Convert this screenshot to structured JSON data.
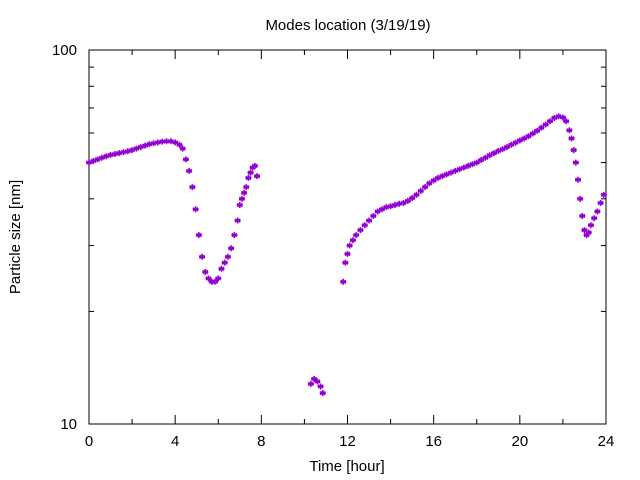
{
  "chart_data": {
    "type": "scatter",
    "title": "Modes location (3/19/19)",
    "xlabel": "Time [hour]",
    "ylabel": "Particle size [nm]",
    "xlim": [
      0,
      24
    ],
    "ylim": [
      10,
      100
    ],
    "yscale": "log",
    "xticks": [
      0,
      4,
      8,
      12,
      16,
      20,
      24
    ],
    "yticks": [
      10,
      100
    ],
    "tick_labels_x": [
      "0",
      "4",
      "8",
      "12",
      "16",
      "20",
      "24"
    ],
    "tick_labels_y": [
      "10",
      "100"
    ],
    "grid": false,
    "legend": "none",
    "marker": "asterisk",
    "color": "#9400d3",
    "points": [
      [
        0.0,
        50.0
      ],
      [
        0.2,
        50.5
      ],
      [
        0.4,
        51.0
      ],
      [
        0.6,
        51.5
      ],
      [
        0.8,
        52.0
      ],
      [
        1.0,
        52.4
      ],
      [
        1.2,
        52.7
      ],
      [
        1.4,
        53.0
      ],
      [
        1.6,
        53.3
      ],
      [
        1.8,
        53.6
      ],
      [
        2.0,
        54.0
      ],
      [
        2.2,
        54.5
      ],
      [
        2.4,
        55.0
      ],
      [
        2.6,
        55.5
      ],
      [
        2.8,
        56.0
      ],
      [
        3.0,
        56.3
      ],
      [
        3.2,
        56.6
      ],
      [
        3.4,
        56.9
      ],
      [
        3.6,
        57.0
      ],
      [
        3.8,
        57.0
      ],
      [
        4.0,
        56.6
      ],
      [
        4.2,
        55.8
      ],
      [
        4.35,
        54.5
      ],
      [
        4.5,
        51.0
      ],
      [
        4.65,
        47.5
      ],
      [
        4.8,
        43.0
      ],
      [
        4.95,
        37.5
      ],
      [
        5.1,
        32.0
      ],
      [
        5.25,
        28.0
      ],
      [
        5.4,
        25.5
      ],
      [
        5.55,
        24.5
      ],
      [
        5.7,
        24.0
      ],
      [
        5.85,
        24.0
      ],
      [
        6.0,
        24.5
      ],
      [
        6.15,
        26.0
      ],
      [
        6.3,
        27.0
      ],
      [
        6.45,
        28.0
      ],
      [
        6.6,
        29.5
      ],
      [
        6.75,
        32.0
      ],
      [
        6.9,
        35.0
      ],
      [
        7.0,
        38.5
      ],
      [
        7.1,
        40.0
      ],
      [
        7.2,
        41.5
      ],
      [
        7.3,
        43.0
      ],
      [
        7.4,
        45.5
      ],
      [
        7.5,
        47.0
      ],
      [
        7.6,
        48.5
      ],
      [
        7.7,
        49.0
      ],
      [
        7.8,
        46.0
      ],
      [
        10.3,
        12.8
      ],
      [
        10.45,
        13.2
      ],
      [
        10.6,
        13.0
      ],
      [
        10.75,
        12.6
      ],
      [
        10.85,
        12.1
      ],
      [
        11.8,
        24.0
      ],
      [
        11.9,
        27.0
      ],
      [
        12.0,
        28.5
      ],
      [
        12.1,
        30.0
      ],
      [
        12.25,
        31.0
      ],
      [
        12.4,
        32.0
      ],
      [
        12.6,
        33.0
      ],
      [
        12.8,
        34.0
      ],
      [
        13.0,
        35.0
      ],
      [
        13.2,
        36.0
      ],
      [
        13.4,
        37.0
      ],
      [
        13.6,
        37.5
      ],
      [
        13.8,
        38.0
      ],
      [
        14.0,
        38.2
      ],
      [
        14.2,
        38.5
      ],
      [
        14.4,
        38.8
      ],
      [
        14.6,
        39.0
      ],
      [
        14.8,
        39.5
      ],
      [
        15.0,
        40.2
      ],
      [
        15.2,
        41.0
      ],
      [
        15.4,
        42.0
      ],
      [
        15.6,
        43.0
      ],
      [
        15.8,
        44.0
      ],
      [
        16.0,
        44.8
      ],
      [
        16.2,
        45.5
      ],
      [
        16.4,
        46.0
      ],
      [
        16.6,
        46.5
      ],
      [
        16.8,
        47.0
      ],
      [
        17.0,
        47.5
      ],
      [
        17.2,
        48.0
      ],
      [
        17.4,
        48.5
      ],
      [
        17.6,
        49.0
      ],
      [
        17.8,
        49.5
      ],
      [
        18.0,
        50.0
      ],
      [
        18.2,
        50.8
      ],
      [
        18.4,
        51.5
      ],
      [
        18.6,
        52.3
      ],
      [
        18.8,
        53.0
      ],
      [
        19.0,
        53.7
      ],
      [
        19.2,
        54.3
      ],
      [
        19.4,
        55.0
      ],
      [
        19.6,
        55.8
      ],
      [
        19.8,
        56.5
      ],
      [
        20.0,
        57.3
      ],
      [
        20.2,
        58.0
      ],
      [
        20.4,
        58.8
      ],
      [
        20.6,
        59.8
      ],
      [
        20.8,
        60.8
      ],
      [
        21.0,
        62.0
      ],
      [
        21.2,
        63.2
      ],
      [
        21.4,
        64.5
      ],
      [
        21.6,
        65.8
      ],
      [
        21.8,
        66.5
      ],
      [
        22.0,
        66.0
      ],
      [
        22.15,
        64.5
      ],
      [
        22.3,
        61.0
      ],
      [
        22.4,
        58.0
      ],
      [
        22.5,
        54.0
      ],
      [
        22.6,
        50.0
      ],
      [
        22.7,
        45.0
      ],
      [
        22.8,
        40.0
      ],
      [
        22.9,
        36.0
      ],
      [
        23.0,
        33.0
      ],
      [
        23.1,
        32.0
      ],
      [
        23.2,
        32.5
      ],
      [
        23.3,
        34.0
      ],
      [
        23.45,
        35.5
      ],
      [
        23.6,
        37.0
      ],
      [
        23.75,
        39.0
      ],
      [
        23.9,
        41.0
      ]
    ]
  }
}
